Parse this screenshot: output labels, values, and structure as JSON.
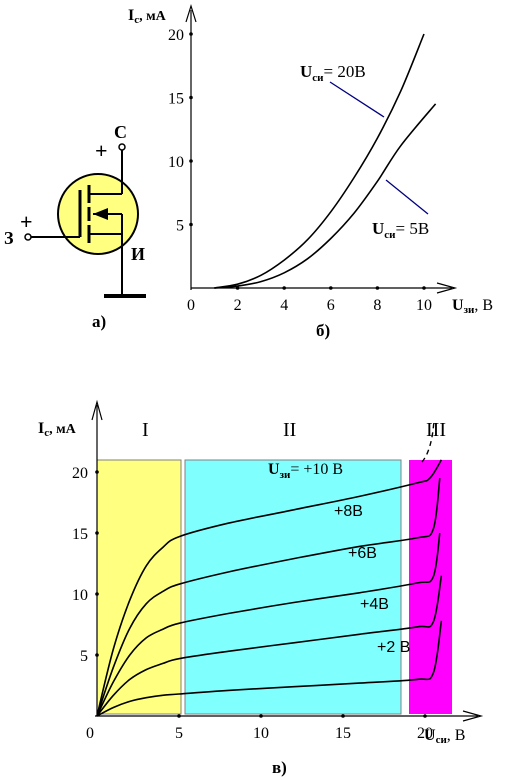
{
  "colors": {
    "region_1": "#ffff80",
    "region_2": "#80ffff",
    "region_3": "#ff00ff",
    "curve": "#000000",
    "callout": "#000080"
  },
  "fig_a": {
    "caption": "а)",
    "gate_label": "З",
    "drain_label": "С",
    "source_label": "И",
    "plus": "+"
  },
  "fig_b": {
    "caption": "б)",
    "y_axis_main": "I",
    "y_axis_sub": "с",
    "y_axis_unit": ", мА",
    "x_axis_main": "U",
    "x_axis_sub": "зи",
    "x_axis_unit": ", В",
    "curve_labels": [
      {
        "main": "U",
        "sub": "си",
        "value": "= 20В"
      },
      {
        "main": "U",
        "sub": "си",
        "value": "= 5В"
      }
    ]
  },
  "fig_v": {
    "caption": "в)",
    "y_axis_main": "I",
    "y_axis_sub": "с",
    "y_axis_unit": ", мА",
    "x_axis_main": "U",
    "x_axis_sub": "си",
    "x_axis_unit": ", В",
    "regions": [
      "I",
      "II",
      "III"
    ],
    "first_curve_label": {
      "main": "U",
      "sub": "зи",
      "value": "= +10 В"
    },
    "curve_labels": [
      "+8В",
      "+6В",
      "+4В",
      "+2 В"
    ]
  },
  "chart_data": [
    {
      "type": "line",
      "xlim": [
        0,
        11
      ],
      "ylim": [
        0,
        21
      ],
      "x_ticks": [
        "0",
        "2",
        "4",
        "6",
        "8",
        "10"
      ],
      "y_ticks": [
        "5",
        "10",
        "15",
        "20"
      ],
      "series": [
        {
          "name": "Uси = 20В",
          "x": [
            1,
            2,
            3,
            4,
            5,
            6,
            7,
            8,
            9,
            10
          ],
          "y": [
            0,
            0.3,
            1.0,
            2.2,
            3.8,
            6.0,
            8.7,
            11.8,
            15.5,
            20.0
          ]
        },
        {
          "name": "Uси = 5В",
          "x": [
            1,
            2,
            3,
            4,
            5,
            6,
            7,
            8,
            9,
            10.5
          ],
          "y": [
            0,
            0.15,
            0.5,
            1.2,
            2.3,
            3.9,
            5.9,
            8.4,
            11.2,
            14.5
          ]
        }
      ]
    },
    {
      "type": "line",
      "xlim": [
        0,
        21
      ],
      "ylim": [
        0,
        21
      ],
      "x_ticks": [
        "0",
        "5",
        "10",
        "15",
        "20"
      ],
      "y_ticks": [
        "5",
        "10",
        "15",
        "20"
      ],
      "series": [
        {
          "name": "Uзи = +10 В",
          "x": [
            0,
            1,
            2,
            3,
            4,
            5,
            8,
            12,
            16,
            19.5,
            20.3,
            21
          ],
          "y": [
            0,
            5.5,
            9.5,
            12.3,
            13.8,
            14.7,
            15.8,
            16.9,
            18.0,
            19.1,
            19.5,
            21.0
          ]
        },
        {
          "name": "+8В",
          "x": [
            0,
            1,
            2,
            3,
            4,
            5,
            8,
            12,
            16,
            19.5,
            20.5,
            20.9
          ],
          "y": [
            0,
            4.0,
            7.2,
            9.2,
            10.2,
            10.8,
            11.8,
            12.9,
            13.9,
            14.6,
            15.3,
            19.5
          ]
        },
        {
          "name": "+6В",
          "x": [
            0,
            1,
            2,
            3,
            4,
            5,
            8,
            12,
            16,
            19.5,
            20.5,
            20.9
          ],
          "y": [
            0,
            2.8,
            5.0,
            6.4,
            7.1,
            7.6,
            8.4,
            9.3,
            10.1,
            10.9,
            11.4,
            15.0
          ]
        },
        {
          "name": "+4В",
          "x": [
            0,
            1,
            2,
            3,
            4,
            5,
            8,
            12,
            16,
            19.5,
            20.5,
            21
          ],
          "y": [
            0,
            1.7,
            3.0,
            3.8,
            4.3,
            4.7,
            5.3,
            6.0,
            6.7,
            7.3,
            7.7,
            11.5
          ]
        },
        {
          "name": "+2 В",
          "x": [
            0,
            1,
            2,
            3,
            4,
            5,
            8,
            12,
            16,
            19.5,
            20.5,
            21
          ],
          "y": [
            0,
            0.7,
            1.2,
            1.5,
            1.7,
            1.8,
            2.1,
            2.4,
            2.7,
            3.0,
            3.5,
            7.8
          ]
        }
      ]
    }
  ]
}
